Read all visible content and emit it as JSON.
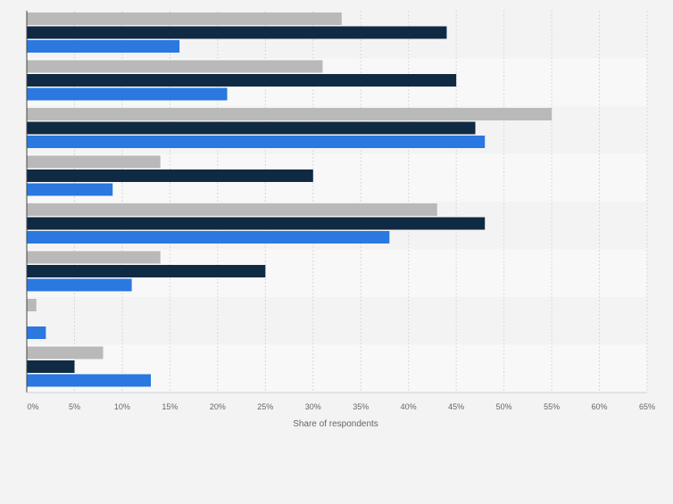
{
  "chart_data": {
    "type": "bar",
    "orientation": "horizontal",
    "categories": [
      "",
      "",
      "",
      "",
      "",
      "",
      "",
      ""
    ],
    "series": [
      {
        "values": [
          33,
          31,
          55,
          14,
          43,
          14,
          1,
          8
        ]
      },
      {
        "values": [
          44,
          45,
          47,
          30,
          48,
          25,
          0,
          5
        ]
      },
      {
        "values": [
          16,
          21,
          48,
          9,
          38,
          11,
          2,
          13
        ]
      }
    ],
    "colors": [
      "#b9b9b9",
      "#102a44",
      "#2a78e0"
    ],
    "xlabel": "Share of respondents",
    "ylabel": "",
    "xlim": [
      0,
      65
    ],
    "xticks": [
      0,
      5,
      10,
      15,
      20,
      25,
      30,
      35,
      40,
      45,
      50,
      55,
      60,
      65
    ],
    "tick_suffix": "%",
    "grid": true,
    "legend": "none",
    "title": ""
  }
}
